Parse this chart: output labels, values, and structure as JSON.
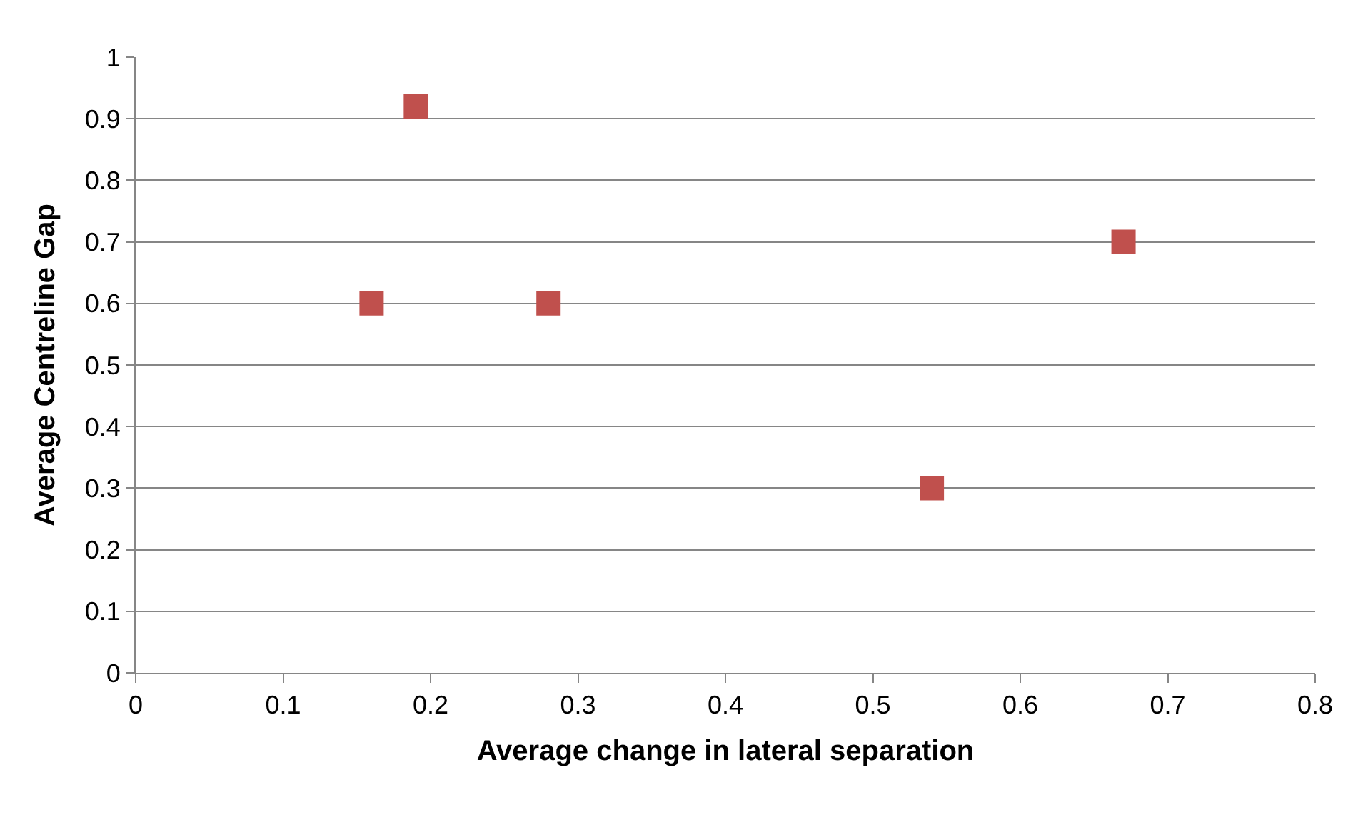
{
  "chart_data": {
    "type": "scatter",
    "xlabel": "Average change in lateral separation",
    "ylabel": "Average Centreline Gap",
    "x": [
      0.16,
      0.19,
      0.28,
      0.54,
      0.67
    ],
    "series": [
      {
        "color": "#c0504d",
        "values": [
          0.6,
          0.92,
          0.6,
          0.3,
          0.7
        ]
      }
    ],
    "xlim": [
      0,
      0.8
    ],
    "xticks": [
      0,
      0.1,
      0.2,
      0.3,
      0.4,
      0.5,
      0.6,
      0.7,
      0.8
    ],
    "ylim": [
      0,
      1
    ],
    "yticks": [
      0,
      0.1,
      0.2,
      0.3,
      0.4,
      0.5,
      0.6,
      0.7,
      0.8,
      0.9,
      1
    ],
    "grid": "y",
    "marker": "square"
  }
}
